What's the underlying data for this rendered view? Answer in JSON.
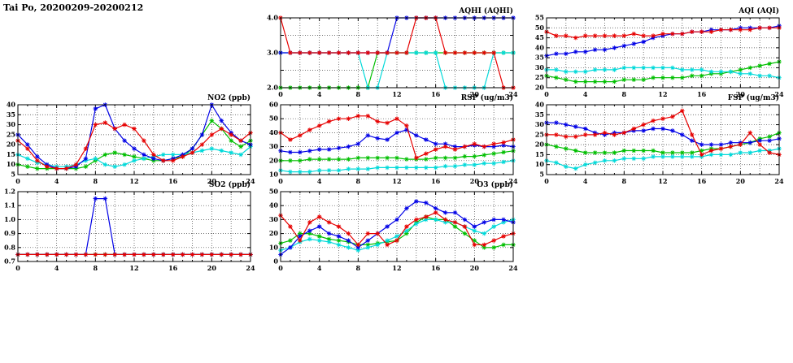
{
  "page_title": "Tai Po, 20200209-20200212",
  "x_axis": {
    "range": [
      0,
      24
    ],
    "grid_step": 2,
    "ticks": [
      {
        "v": 0,
        "label": "0"
      },
      {
        "v": 4,
        "label": "4"
      },
      {
        "v": 8,
        "label": "8"
      },
      {
        "v": 12,
        "label": "12"
      },
      {
        "v": 16,
        "label": "16"
      },
      {
        "v": 20,
        "label": "20"
      },
      {
        "v": 24,
        "label": "24"
      }
    ]
  },
  "colors": {
    "red": "#e60000",
    "blue": "#0000e6",
    "green": "#00bf00",
    "cyan": "#00d9d9"
  },
  "chart_data": [
    {
      "type": "line",
      "title": "AQHI (AQHI)",
      "xlabel": "",
      "ylabel": "AQHI",
      "ylim": [
        2,
        4
      ],
      "y_ticks": [
        {
          "v": 2,
          "label": "2.0"
        },
        {
          "v": 2.5,
          "label": ""
        },
        {
          "v": 3,
          "label": "3.0"
        },
        {
          "v": 3.5,
          "label": ""
        },
        {
          "v": 4,
          "label": "4.0"
        }
      ],
      "x_start": 0,
      "x_step": 1,
      "series": [
        {
          "name": "green",
          "color": "#00bf00",
          "values": [
            2,
            2,
            2,
            2,
            2,
            2,
            2,
            2,
            2,
            2,
            3,
            3,
            3,
            3,
            3,
            3,
            3,
            3,
            3,
            3,
            3,
            3,
            3,
            3,
            3
          ]
        },
        {
          "name": "cyan",
          "color": "#00d9d9",
          "values": [
            3,
            3,
            3,
            3,
            3,
            3,
            3,
            3,
            3,
            2,
            2,
            3,
            3,
            3,
            3,
            3,
            3,
            2,
            2,
            2,
            2,
            2,
            3,
            3,
            3
          ]
        },
        {
          "name": "blue",
          "color": "#0000e6",
          "values": [
            3,
            3,
            3,
            3,
            3,
            3,
            3,
            3,
            3,
            3,
            3,
            3,
            4,
            4,
            4,
            4,
            4,
            4,
            4,
            4,
            4,
            4,
            4,
            4,
            4
          ]
        },
        {
          "name": "red",
          "color": "#e60000",
          "values": [
            4,
            3,
            3,
            3,
            3,
            3,
            3,
            3,
            3,
            3,
            3,
            3,
            3,
            3,
            4,
            4,
            4,
            3,
            3,
            3,
            3,
            3,
            3,
            2,
            2
          ]
        }
      ]
    },
    {
      "type": "line",
      "title": "AQI (AQI)",
      "xlabel": "",
      "ylabel": "AQI",
      "ylim": [
        20,
        55
      ],
      "y_ticks": [
        {
          "v": 20,
          "label": "20"
        },
        {
          "v": 25,
          "label": "25"
        },
        {
          "v": 30,
          "label": "30"
        },
        {
          "v": 35,
          "label": "35"
        },
        {
          "v": 40,
          "label": "40"
        },
        {
          "v": 45,
          "label": "45"
        },
        {
          "v": 50,
          "label": "50"
        },
        {
          "v": 55,
          "label": "55"
        }
      ],
      "x_start": 0,
      "x_step": 1,
      "series": [
        {
          "name": "green",
          "color": "#00bf00",
          "values": [
            26,
            25,
            24,
            23,
            23,
            23,
            23,
            23,
            24,
            24,
            24,
            25,
            25,
            25,
            25,
            26,
            26,
            27,
            27,
            28,
            29,
            30,
            31,
            32,
            33
          ]
        },
        {
          "name": "cyan",
          "color": "#00d9d9",
          "values": [
            29,
            29,
            28,
            28,
            28,
            29,
            29,
            29,
            30,
            30,
            30,
            30,
            30,
            30,
            29,
            29,
            29,
            28,
            28,
            28,
            27,
            27,
            26,
            26,
            25
          ]
        },
        {
          "name": "blue",
          "color": "#0000e6",
          "values": [
            36,
            37,
            37,
            38,
            38,
            39,
            39,
            40,
            41,
            42,
            43,
            45,
            46,
            47,
            47,
            48,
            48,
            49,
            49,
            49,
            50,
            50,
            50,
            50,
            51
          ]
        },
        {
          "name": "red",
          "color": "#e60000",
          "values": [
            48,
            46,
            46,
            45,
            46,
            46,
            46,
            46,
            46,
            47,
            46,
            46,
            47,
            47,
            47,
            48,
            48,
            48,
            49,
            49,
            49,
            49,
            50,
            50,
            50
          ]
        }
      ]
    },
    {
      "type": "line",
      "title": "NO2 (ppb)",
      "xlabel": "",
      "ylabel": "NO2 (ppb)",
      "ylim": [
        5,
        40
      ],
      "y_ticks": [
        {
          "v": 5,
          "label": "5"
        },
        {
          "v": 10,
          "label": "10"
        },
        {
          "v": 15,
          "label": "15"
        },
        {
          "v": 20,
          "label": "20"
        },
        {
          "v": 25,
          "label": "25"
        },
        {
          "v": 30,
          "label": "30"
        },
        {
          "v": 35,
          "label": "35"
        },
        {
          "v": 40,
          "label": "40"
        }
      ],
      "x_start": 0,
      "x_step": 1,
      "series": [
        {
          "name": "green",
          "color": "#00bf00",
          "values": [
            10,
            9,
            8,
            8,
            8,
            8,
            8,
            9,
            12,
            15,
            16,
            15,
            14,
            13,
            12,
            12,
            13,
            14,
            18,
            25,
            32,
            28,
            22,
            19,
            22
          ]
        },
        {
          "name": "cyan",
          "color": "#00d9d9",
          "values": [
            15,
            13,
            11,
            10,
            9,
            9,
            10,
            12,
            13,
            10,
            9,
            10,
            12,
            13,
            14,
            15,
            15,
            15,
            16,
            17,
            18,
            17,
            16,
            15,
            19
          ]
        },
        {
          "name": "blue",
          "color": "#0000e6",
          "values": [
            25,
            20,
            14,
            10,
            8,
            8,
            9,
            13,
            38,
            40,
            28,
            22,
            18,
            15,
            13,
            12,
            13,
            15,
            18,
            25,
            40,
            32,
            26,
            22,
            20
          ]
        },
        {
          "name": "red",
          "color": "#e60000",
          "values": [
            22,
            18,
            12,
            9,
            8,
            8,
            10,
            18,
            30,
            31,
            28,
            30,
            28,
            22,
            15,
            12,
            12,
            14,
            16,
            20,
            25,
            28,
            25,
            22,
            26
          ]
        }
      ]
    },
    {
      "type": "line",
      "title": "RSP (ug/m3)",
      "xlabel": "",
      "ylabel": "RSP (ug/m3)",
      "ylim": [
        10,
        60
      ],
      "y_ticks": [
        {
          "v": 10,
          "label": "10"
        },
        {
          "v": 20,
          "label": "20"
        },
        {
          "v": 30,
          "label": "30"
        },
        {
          "v": 40,
          "label": "40"
        },
        {
          "v": 50,
          "label": "50"
        },
        {
          "v": 60,
          "label": "60"
        }
      ],
      "x_start": 0,
      "x_step": 1,
      "series": [
        {
          "name": "green",
          "color": "#00bf00",
          "values": [
            20,
            20,
            20,
            21,
            21,
            21,
            21,
            21,
            22,
            22,
            22,
            22,
            22,
            21,
            21,
            21,
            22,
            22,
            22,
            23,
            23,
            24,
            25,
            26,
            27
          ]
        },
        {
          "name": "cyan",
          "color": "#00d9d9",
          "values": [
            13,
            12,
            12,
            12,
            13,
            13,
            13,
            14,
            14,
            14,
            15,
            15,
            15,
            15,
            15,
            15,
            15,
            16,
            16,
            17,
            17,
            18,
            18,
            19,
            20
          ]
        },
        {
          "name": "blue",
          "color": "#0000e6",
          "values": [
            27,
            26,
            26,
            27,
            28,
            28,
            29,
            30,
            32,
            38,
            36,
            35,
            40,
            42,
            38,
            35,
            32,
            32,
            30,
            30,
            31,
            30,
            30,
            31,
            30
          ]
        },
        {
          "name": "red",
          "color": "#e60000",
          "values": [
            40,
            35,
            38,
            42,
            45,
            48,
            50,
            50,
            52,
            52,
            48,
            47,
            50,
            45,
            22,
            25,
            28,
            30,
            28,
            30,
            32,
            30,
            32,
            33,
            35
          ]
        }
      ]
    },
    {
      "type": "line",
      "title": "FSP (ug/m3)",
      "xlabel": "",
      "ylabel": "FSP (ug/m3)",
      "ylim": [
        5,
        40
      ],
      "y_ticks": [
        {
          "v": 5,
          "label": "5"
        },
        {
          "v": 10,
          "label": "10"
        },
        {
          "v": 15,
          "label": "15"
        },
        {
          "v": 20,
          "label": "20"
        },
        {
          "v": 25,
          "label": "25"
        },
        {
          "v": 30,
          "label": "30"
        },
        {
          "v": 35,
          "label": "35"
        },
        {
          "v": 40,
          "label": "40"
        }
      ],
      "x_start": 0,
      "x_step": 1,
      "series": [
        {
          "name": "green",
          "color": "#00bf00",
          "values": [
            20,
            19,
            18,
            17,
            16,
            16,
            16,
            16,
            17,
            17,
            17,
            17,
            16,
            16,
            16,
            16,
            17,
            18,
            18,
            19,
            20,
            21,
            23,
            24,
            26
          ]
        },
        {
          "name": "cyan",
          "color": "#00d9d9",
          "values": [
            12,
            11,
            9,
            8,
            10,
            11,
            12,
            12,
            13,
            13,
            13,
            14,
            14,
            14,
            14,
            14,
            14,
            15,
            15,
            15,
            16,
            16,
            17,
            17,
            18
          ]
        },
        {
          "name": "blue",
          "color": "#0000e6",
          "values": [
            31,
            31,
            30,
            29,
            28,
            26,
            25,
            26,
            26,
            27,
            27,
            28,
            28,
            27,
            25,
            22,
            20,
            20,
            20,
            21,
            21,
            21,
            22,
            22,
            23
          ]
        },
        {
          "name": "red",
          "color": "#e60000",
          "values": [
            25,
            25,
            24,
            24,
            25,
            25,
            26,
            25,
            26,
            28,
            30,
            32,
            33,
            34,
            37,
            25,
            15,
            17,
            18,
            19,
            20,
            26,
            20,
            16,
            15
          ]
        }
      ]
    },
    {
      "type": "line",
      "title": "SO2 (ppb)",
      "xlabel": "",
      "ylabel": "SO2 (ppb)",
      "ylim": [
        0.7,
        1.2
      ],
      "y_ticks": [
        {
          "v": 0.7,
          "label": "0.7"
        },
        {
          "v": 0.8,
          "label": "0.8"
        },
        {
          "v": 0.9,
          "label": "0.9"
        },
        {
          "v": 1.0,
          "label": "1.0"
        },
        {
          "v": 1.1,
          "label": "1.1"
        },
        {
          "v": 1.2,
          "label": "1.2"
        }
      ],
      "x_start": 0,
      "x_step": 1,
      "series": [
        {
          "name": "green",
          "color": "#00bf00",
          "values": [
            0.75,
            0.75,
            0.75,
            0.75,
            0.75,
            0.75,
            0.75,
            0.75,
            0.75,
            0.75,
            0.75,
            0.75,
            0.75,
            0.75,
            0.75,
            0.75,
            0.75,
            0.75,
            0.75,
            0.75,
            0.75,
            0.75,
            0.75,
            0.75,
            0.75
          ]
        },
        {
          "name": "cyan",
          "color": "#00d9d9",
          "values": [
            0.75,
            0.75,
            0.75,
            0.75,
            0.75,
            0.75,
            0.75,
            0.75,
            0.75,
            0.75,
            0.75,
            0.75,
            0.75,
            0.75,
            0.75,
            0.75,
            0.75,
            0.75,
            0.75,
            0.75,
            0.75,
            0.75,
            0.75,
            0.75,
            0.75
          ]
        },
        {
          "name": "blue",
          "color": "#0000e6",
          "values": [
            0.75,
            0.75,
            0.75,
            0.75,
            0.75,
            0.75,
            0.75,
            0.75,
            1.15,
            1.15,
            0.75,
            0.75,
            0.75,
            0.75,
            0.75,
            0.75,
            0.75,
            0.75,
            0.75,
            0.75,
            0.75,
            0.75,
            0.75,
            0.75,
            0.75
          ]
        },
        {
          "name": "red",
          "color": "#e60000",
          "values": [
            0.75,
            0.75,
            0.75,
            0.75,
            0.75,
            0.75,
            0.75,
            0.75,
            0.75,
            0.75,
            0.75,
            0.75,
            0.75,
            0.75,
            0.75,
            0.75,
            0.75,
            0.75,
            0.75,
            0.75,
            0.75,
            0.75,
            0.75,
            0.75,
            0.75
          ]
        }
      ]
    },
    {
      "type": "line",
      "title": "O3 (ppb)",
      "xlabel": "",
      "ylabel": "O3 (ppb)",
      "ylim": [
        0,
        50
      ],
      "y_ticks": [
        {
          "v": 0,
          "label": "0"
        },
        {
          "v": 10,
          "label": "10"
        },
        {
          "v": 20,
          "label": "20"
        },
        {
          "v": 30,
          "label": "30"
        },
        {
          "v": 40,
          "label": "40"
        },
        {
          "v": 50,
          "label": "50"
        }
      ],
      "x_start": 0,
      "x_step": 1,
      "series": [
        {
          "name": "green",
          "color": "#00bf00",
          "values": [
            13,
            15,
            20,
            20,
            18,
            16,
            15,
            14,
            12,
            12,
            13,
            14,
            15,
            20,
            28,
            32,
            30,
            30,
            25,
            20,
            15,
            10,
            10,
            12,
            12
          ]
        },
        {
          "name": "cyan",
          "color": "#00d9d9",
          "values": [
            8,
            10,
            14,
            16,
            15,
            14,
            12,
            10,
            8,
            10,
            12,
            15,
            18,
            22,
            27,
            30,
            30,
            28,
            28,
            25,
            22,
            20,
            25,
            28,
            30
          ]
        },
        {
          "name": "blue",
          "color": "#0000e6",
          "values": [
            5,
            10,
            18,
            22,
            25,
            20,
            18,
            15,
            10,
            15,
            20,
            25,
            30,
            38,
            43,
            42,
            38,
            35,
            35,
            30,
            25,
            28,
            30,
            30,
            28
          ]
        },
        {
          "name": "red",
          "color": "#e60000",
          "values": [
            33,
            25,
            15,
            28,
            32,
            28,
            25,
            20,
            12,
            20,
            20,
            12,
            15,
            25,
            30,
            32,
            35,
            30,
            28,
            25,
            12,
            12,
            15,
            18,
            20
          ]
        }
      ]
    }
  ]
}
